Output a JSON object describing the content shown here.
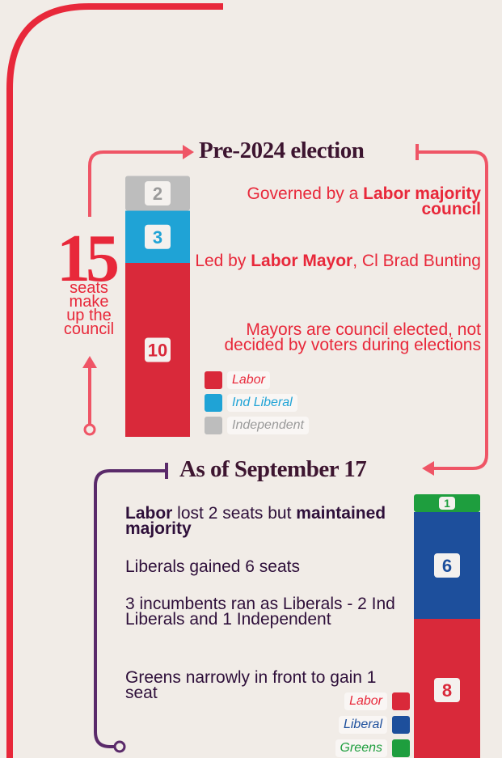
{
  "total": "15",
  "total_caption": [
    "seats",
    "make",
    "up the",
    "council"
  ],
  "sections": [
    {
      "heading": "Pre-2024 election",
      "notes": [
        [
          {
            "text": "Governed by a ",
            "bold": false
          },
          {
            "text": "Labor majority council",
            "bold": true
          }
        ],
        [
          {
            "text": "Led by ",
            "bold": false
          },
          {
            "text": "Labor Mayor",
            "bold": true
          },
          {
            "text": ", Cl Brad Bunting",
            "bold": false
          }
        ],
        [
          {
            "text": "Mayors are council elected, not decided by voters during elections",
            "bold": false
          }
        ]
      ],
      "segments": [
        {
          "name": "Labor",
          "value": 10,
          "color": "#d9293a"
        },
        {
          "name": "Ind Liberal",
          "value": 3,
          "color": "#1fa3d6"
        },
        {
          "name": "Independent",
          "value": 2,
          "color": "#bdbdbd"
        }
      ]
    },
    {
      "heading": "As of September 17",
      "notes": [
        [
          {
            "text": "Labor",
            "bold": true
          },
          {
            "text": " lost 2 seats but ",
            "bold": false
          },
          {
            "text": "maintained majority",
            "bold": true
          }
        ],
        [
          {
            "text": "Liberals gained 6 seats",
            "bold": false
          }
        ],
        [
          {
            "text": "3 incumbents ran as Liberals - 2 Ind Liberals and 1 Independent",
            "bold": false
          }
        ],
        [
          {
            "text": "Greens narrowly in front to gain 1 seat",
            "bold": false
          }
        ]
      ],
      "segments": [
        {
          "name": "Labor",
          "value": 8,
          "color": "#d9293a"
        },
        {
          "name": "Liberal",
          "value": 6,
          "color": "#1d4f9c"
        },
        {
          "name": "Greens",
          "value": 1,
          "color": "#1e9e3e"
        }
      ]
    }
  ]
}
